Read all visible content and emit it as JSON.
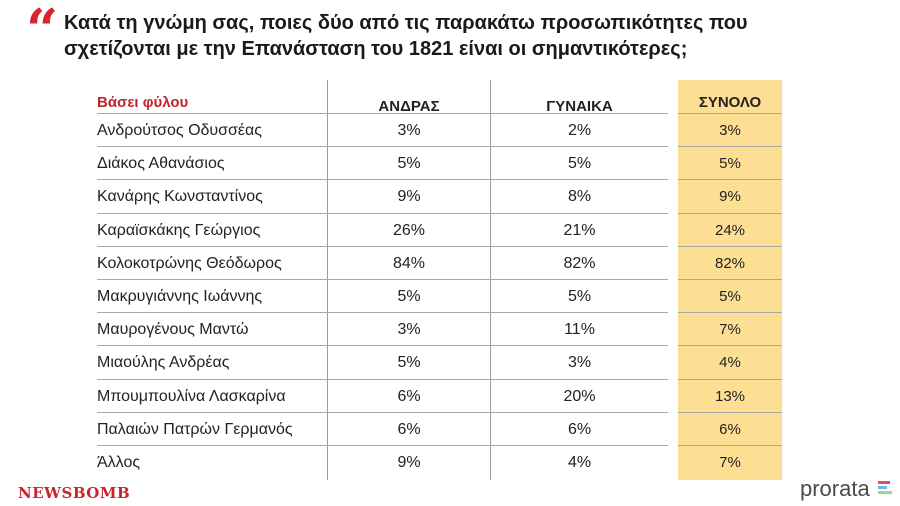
{
  "header": {
    "question": "Κατά τη γνώμη σας, ποιες δύο από τις παρακάτω προσωπικότητες που σχετίζονται με την Επανάσταση του 1821 είναι οι σημαντικότερες;"
  },
  "colors": {
    "accent_red": "#d8242b",
    "total_column": "#fddf93",
    "prorata_bar_1": "#e04b6e",
    "prorata_bar_2": "#6fb6e8",
    "prorata_bar_3": "#9fd49a"
  },
  "chart_data": {
    "type": "table",
    "row_header": "Βάσει φύλου",
    "columns": [
      "ΑΝΔΡΑΣ",
      "ΓΥΝΑΙΚΑ",
      "ΣΥΝΟΛΟ"
    ],
    "rows": [
      {
        "name": "Ανδρούτσος Οδυσσέας",
        "men": "3%",
        "women": "2%",
        "total": "3%"
      },
      {
        "name": "Διάκος Αθανάσιος",
        "men": "5%",
        "women": "5%",
        "total": "5%"
      },
      {
        "name": "Κανάρης Κωνσταντίνος",
        "men": "9%",
        "women": "8%",
        "total": "9%"
      },
      {
        "name": "Καραϊσκάκης Γεώργιος",
        "men": "26%",
        "women": "21%",
        "total": "24%"
      },
      {
        "name": "Κολοκοτρώνης Θεόδωρος",
        "men": "84%",
        "women": "82%",
        "total": "82%"
      },
      {
        "name": "Μακρυγιάννης Ιωάννης",
        "men": "5%",
        "women": "5%",
        "total": "5%"
      },
      {
        "name": "Μαυρογένους Μαντώ",
        "men": "3%",
        "women": "11%",
        "total": "7%"
      },
      {
        "name": "Μιαούλης Ανδρέας",
        "men": "5%",
        "women": "3%",
        "total": "4%"
      },
      {
        "name": "Μπουμπουλίνα Λασκαρίνα",
        "men": "6%",
        "women": "20%",
        "total": "13%"
      },
      {
        "name": "Παλαιών Πατρών Γερμανός",
        "men": "6%",
        "women": "6%",
        "total": "6%"
      },
      {
        "name": "Άλλος",
        "men": "9%",
        "women": "4%",
        "total": "7%"
      }
    ]
  },
  "footer": {
    "left_logo": "NEWSBOMB",
    "right_logo": "prorata"
  }
}
